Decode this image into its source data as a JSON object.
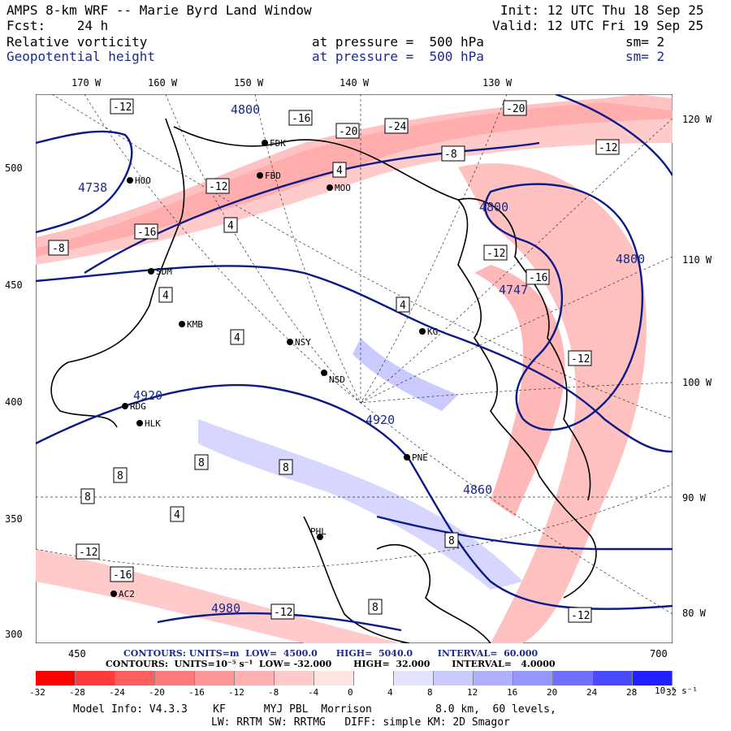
{
  "header": {
    "title": "AMPS 8-km WRF -- Marie Byrd Land Window",
    "init": "Init: 12 UTC Thu 18 Sep 25",
    "fcst": "Fcst:    24 h",
    "valid": "Valid: 12 UTC Fri 19 Sep 25",
    "field1_name": "Relative vorticity",
    "field1_level": "at pressure =  500 hPa",
    "field1_sm": "sm= 2",
    "field2_name": "Geopotential height",
    "field2_level": "at pressure =  500 hPa",
    "field2_sm": "sm= 2"
  },
  "lon_labels": [
    "170 W",
    "160 W",
    "150 W",
    "140 W",
    "130 W"
  ],
  "lat_labels": [
    "120 W",
    "110 W",
    "100 W",
    "90 W",
    "80 W"
  ],
  "y_ticks": [
    "500",
    "450",
    "400",
    "350",
    "300"
  ],
  "x_ticks": [
    "450",
    "700"
  ],
  "stations": [
    "HOO",
    "FBD",
    "FDK",
    "MOO",
    "SDM",
    "KMB",
    "NSY",
    "KG",
    "NSD",
    "RDG",
    "HLK",
    "PNE",
    "PHL",
    "AC2"
  ],
  "height_contours": [
    "4800",
    "4800",
    "4800",
    "4920",
    "4920",
    "4980",
    "4747",
    "4738",
    "4860"
  ],
  "vort_labels": [
    "-32",
    "-28",
    "-24",
    "-20",
    "-16",
    "-12",
    "-8",
    "-4",
    "4",
    "8"
  ],
  "contours_line1": "CONTOURS: UNITS=m  LOW=  4500.0      HIGH=  5040.0        INTERVAL=  60.000",
  "contours_line2": "CONTOURS:  UNITS=10⁻⁵ s⁻¹  LOW= -32.000       HIGH=  32.000       INTERVAL=   4.0000",
  "colorbar": {
    "labels": [
      "-32",
      "-28",
      "-24",
      "-20",
      "-16",
      "-12",
      "-8",
      "-4",
      "0",
      "4",
      "8",
      "12",
      "16",
      "20",
      "24",
      "28",
      "32"
    ],
    "unit": "10⁻⁵ s⁻¹",
    "colors": [
      "#ff0000",
      "#ff3b3b",
      "#ff5e5e",
      "#ff7a7a",
      "#ff9696",
      "#ffb0b0",
      "#ffcaca",
      "#ffe4e4",
      "#ffffff",
      "#e4e4ff",
      "#cacaff",
      "#b0b0ff",
      "#9696ff",
      "#7070ff",
      "#4a4aff",
      "#2020ff"
    ]
  },
  "footer": {
    "line1": "Model Info: V4.3.3    KF      MYJ PBL  Morrison          8.0 km,  60 levels,",
    "line2": "LW: RRTM SW: RRTMG   DIFF: simple KM: 2D Smagor"
  }
}
